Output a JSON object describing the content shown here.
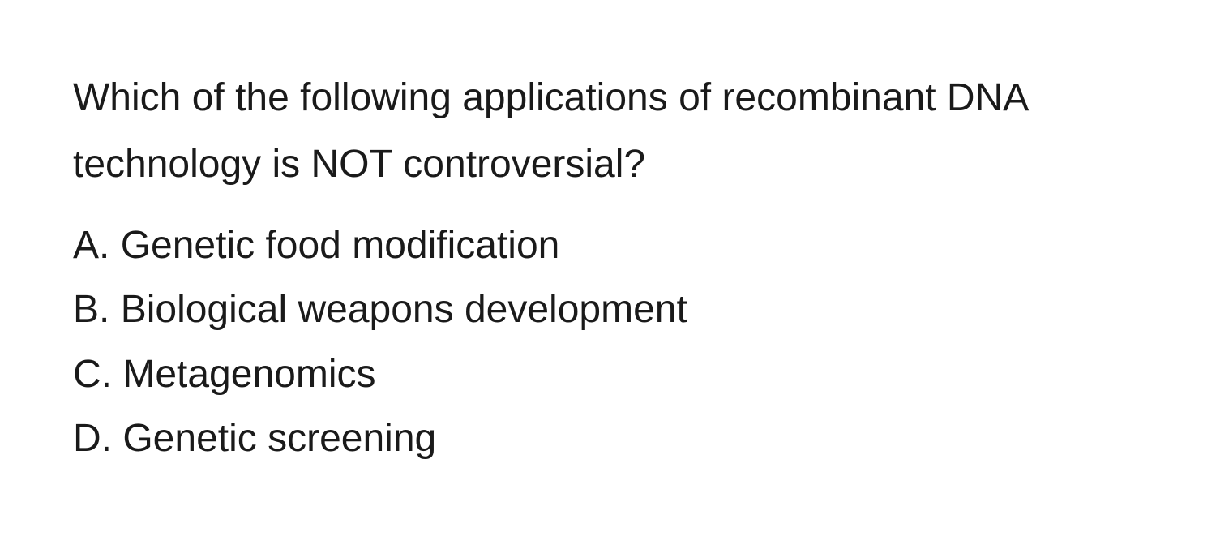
{
  "question": {
    "text": "Which of the following applications of recombinant DNA technology is NOT controversial?"
  },
  "options": [
    {
      "label": "A.",
      "text": " Genetic food modification"
    },
    {
      "label": "B.",
      "text": " Biological weapons development"
    },
    {
      "label": "C.",
      "text": " Metagenomics"
    },
    {
      "label": "D.",
      "text": " Genetic screening"
    }
  ],
  "colors": {
    "background": "#ffffff",
    "text": "#1a1a1a"
  },
  "typography": {
    "font_size": 48,
    "line_height": 1.7,
    "font_weight": 400,
    "font_family": "-apple-system, BlinkMacSystemFont, Segoe UI, Helvetica, Arial, sans-serif"
  }
}
